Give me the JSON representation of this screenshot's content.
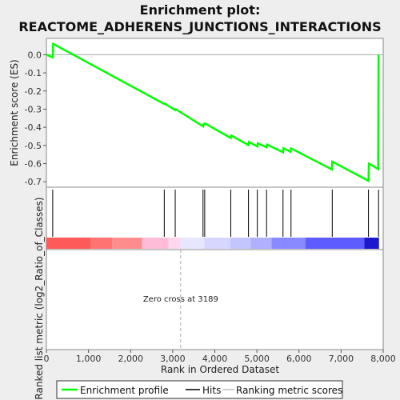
{
  "chart_data": {
    "type": "line",
    "title_line1": "Enrichment plot:",
    "title_line2": "REACTOME_ADHERENS_JUNCTIONS_INTERACTIONS",
    "ylabel_top": "Enrichment score (ES)",
    "ylabel_bottom": "Ranked list metric (log2_Ratio_of_Classes)",
    "xlabel": "Rank in Ordered Dataset",
    "xlim": [
      0,
      8000
    ],
    "ylim": [
      -0.73,
      0.09
    ],
    "x_ticks": [
      0,
      1000,
      2000,
      3000,
      4000,
      5000,
      6000,
      7000,
      8000
    ],
    "x_tick_labels": [
      "0",
      "1,000",
      "2,000",
      "3,000",
      "4,000",
      "5,000",
      "6,000",
      "7,000",
      "8,000"
    ],
    "y_ticks": [
      0.0,
      -0.1,
      -0.2,
      -0.3,
      -0.4,
      -0.5,
      -0.6,
      -0.7
    ],
    "y_tick_labels": [
      "0.0",
      "-0.1",
      "-0.2",
      "-0.3",
      "-0.4",
      "-0.5",
      "-0.6",
      "-0.7"
    ],
    "series": [
      {
        "name": "Enrichment profile",
        "color": "#00ff00",
        "x": [
          0,
          150,
          160,
          2790,
          2800,
          3060,
          3070,
          3720,
          3730,
          3760,
          3770,
          4380,
          4390,
          4800,
          4810,
          5010,
          5020,
          5230,
          5240,
          5620,
          5630,
          5800,
          5810,
          6780,
          6790,
          7650,
          7660,
          7880,
          7890
        ],
        "y": [
          0.0,
          -0.015,
          0.06,
          -0.27,
          -0.268,
          -0.305,
          -0.3,
          -0.395,
          -0.382,
          -0.385,
          -0.379,
          -0.459,
          -0.445,
          -0.498,
          -0.481,
          -0.505,
          -0.488,
          -0.51,
          -0.495,
          -0.538,
          -0.515,
          -0.535,
          -0.516,
          -0.632,
          -0.589,
          -0.695,
          -0.6,
          -0.63,
          0.0
        ]
      }
    ],
    "hits": [
      150,
      2800,
      3060,
      3720,
      3760,
      4380,
      4800,
      5010,
      5230,
      5620,
      5810,
      6790,
      7650,
      7890
    ],
    "rank_bar_segments": [
      {
        "from": 0,
        "to": 1060,
        "color": "#ff5a5a"
      },
      {
        "from": 1060,
        "to": 1560,
        "color": "#ff7373"
      },
      {
        "from": 1560,
        "to": 2270,
        "color": "#ff8c8c"
      },
      {
        "from": 2270,
        "to": 2900,
        "color": "#ffbdda"
      },
      {
        "from": 2900,
        "to": 3189,
        "color": "#ffd6ee"
      },
      {
        "from": 3189,
        "to": 3750,
        "color": "#e6e6ff"
      },
      {
        "from": 3750,
        "to": 4370,
        "color": "#d6d6ff"
      },
      {
        "from": 4370,
        "to": 4850,
        "color": "#c4c4ff"
      },
      {
        "from": 4850,
        "to": 5350,
        "color": "#b0b0ff"
      },
      {
        "from": 5350,
        "to": 6150,
        "color": "#8a8aff"
      },
      {
        "from": 6150,
        "to": 7550,
        "color": "#5c5cff"
      },
      {
        "from": 7550,
        "to": 7900,
        "color": "#1a1acc"
      }
    ],
    "zero_cross_rank": 3189,
    "zero_cross_label": "Zero cross at 3189",
    "legend": {
      "items": [
        {
          "label": "Enrichment profile",
          "color": "#00ff00"
        },
        {
          "label": "Hits",
          "color": "#000000"
        },
        {
          "label": "Ranking metric scores",
          "color": "#c0c0c0"
        }
      ]
    }
  }
}
